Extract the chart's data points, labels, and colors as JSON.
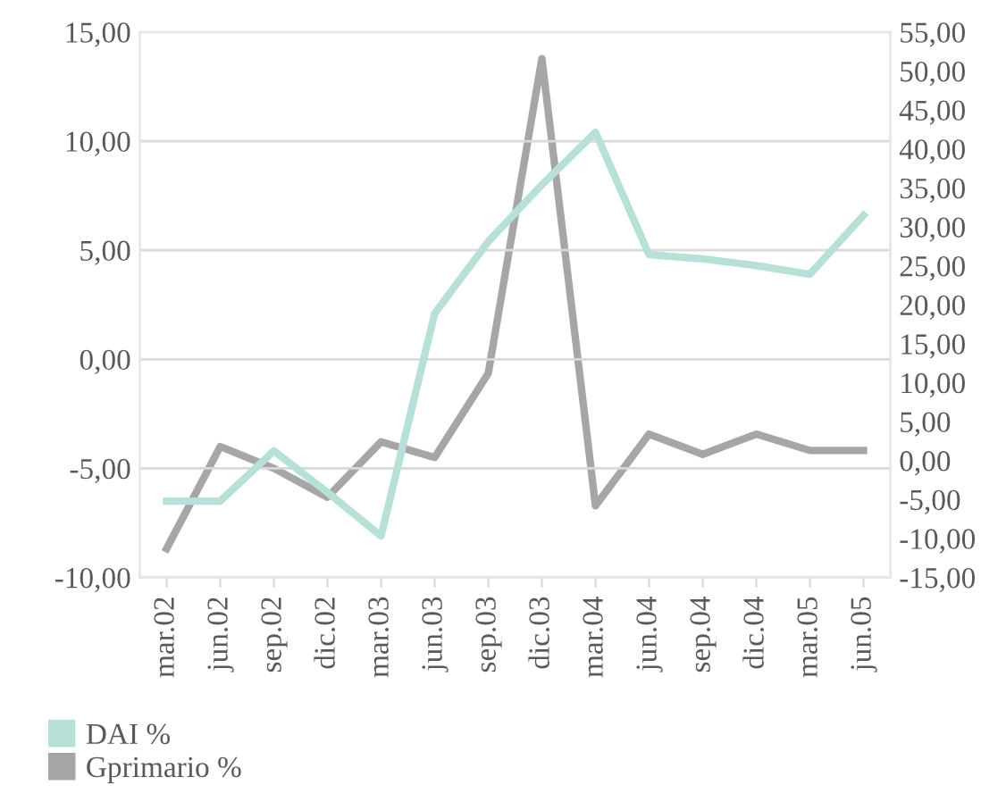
{
  "chart_data": {
    "type": "line",
    "categories": [
      "mar.02",
      "jun.02",
      "sep.02",
      "dic.02",
      "mar.03",
      "jun.03",
      "sep.03",
      "dic.03",
      "mar.04",
      "jun.04",
      "sep.04",
      "dic.04",
      "mar.05",
      "jun.05"
    ],
    "series": [
      {
        "name": "DAI %",
        "color": "#b7e1d8",
        "values": [
          -6.5,
          -6.5,
          -4.2,
          -6.1,
          -8.1,
          2.1,
          5.4,
          8.0,
          10.4,
          4.8,
          4.6,
          4.3,
          3.9,
          6.6
        ]
      },
      {
        "name": "Gprimario %",
        "color": "#a6a6a6",
        "axis": "y2",
        "values": [
          -11.3,
          1.8,
          -1.0,
          -4.7,
          2.4,
          0.4,
          11.2,
          51.6,
          -5.8,
          3.4,
          0.8,
          3.4,
          1.3,
          1.3
        ]
      }
    ],
    "ylim": [
      -10,
      15
    ],
    "yticks": [
      {
        "value": -10,
        "label": "-10,00"
      },
      {
        "value": -5,
        "label": "-5,00"
      },
      {
        "value": 0,
        "label": "0,00"
      },
      {
        "value": 5,
        "label": "5,00"
      },
      {
        "value": 10,
        "label": "10,00"
      },
      {
        "value": 15,
        "label": "15,00"
      }
    ],
    "y2lim": [
      -15,
      55
    ],
    "y2ticks": [
      {
        "value": -15,
        "label": "-15,00"
      },
      {
        "value": -10,
        "label": "-10,00"
      },
      {
        "value": -5,
        "label": "-5,00"
      },
      {
        "value": 0,
        "label": "0,00"
      },
      {
        "value": 5,
        "label": "5,00"
      },
      {
        "value": 10,
        "label": "10,00"
      },
      {
        "value": 15,
        "label": "15,00"
      },
      {
        "value": 20,
        "label": "20,00"
      },
      {
        "value": 25,
        "label": "25,00"
      },
      {
        "value": 30,
        "label": "30,00"
      },
      {
        "value": 35,
        "label": "35,00"
      },
      {
        "value": 40,
        "label": "40,00"
      },
      {
        "value": 45,
        "label": "45,00"
      },
      {
        "value": 50,
        "label": "50,00"
      },
      {
        "value": 55,
        "label": "55,00"
      }
    ],
    "grid": "y",
    "legend": "bottom left",
    "marker": "none",
    "line_style": "solid"
  }
}
